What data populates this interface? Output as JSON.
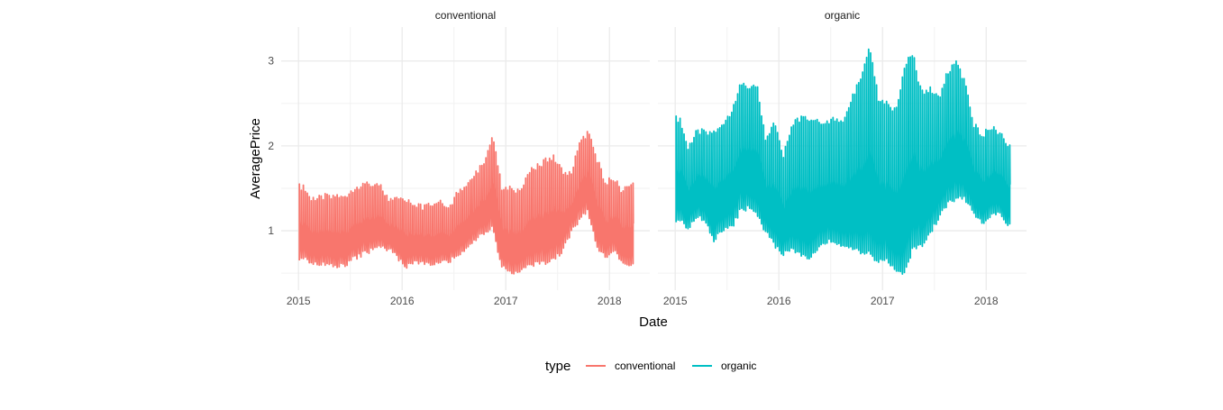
{
  "chart_data": {
    "type": "line",
    "facet_by": "type",
    "xlabel": "Date",
    "ylabel": "AveragePrice",
    "x_ticks": [
      "2015",
      "2016",
      "2017",
      "2018"
    ],
    "y_ticks": [
      1,
      2,
      3
    ],
    "xlim": [
      "2014-11-01",
      "2018-05-23"
    ],
    "ylim": [
      0.3,
      3.4
    ],
    "grid": true,
    "legend": {
      "title": "type",
      "placement": "bottom",
      "entries": [
        "conventional",
        "organic"
      ]
    },
    "date_range": [
      "2015-01-04",
      "2018-03-25"
    ],
    "note_series_format": "monthly envelope (min/max AveragePrice across regions), months 2015-01 to 2018-03",
    "panels": [
      {
        "name": "conventional",
        "color": "#F8766D",
        "monthly_high": [
          1.55,
          1.4,
          1.42,
          1.45,
          1.45,
          1.45,
          1.55,
          1.58,
          1.6,
          1.55,
          1.4,
          1.4,
          1.38,
          1.35,
          1.3,
          1.35,
          1.4,
          1.3,
          1.5,
          1.6,
          1.7,
          1.85,
          2.2,
          1.55,
          1.55,
          1.5,
          1.7,
          1.8,
          1.85,
          1.9,
          1.75,
          1.7,
          2.05,
          2.2,
          1.9,
          1.6,
          1.65,
          1.5,
          1.6
        ],
        "monthly_low": [
          0.65,
          0.6,
          0.58,
          0.6,
          0.55,
          0.58,
          0.65,
          0.7,
          0.75,
          0.78,
          0.75,
          0.65,
          0.55,
          0.6,
          0.6,
          0.58,
          0.6,
          0.62,
          0.7,
          0.78,
          0.85,
          0.95,
          1.0,
          0.55,
          0.5,
          0.48,
          0.55,
          0.58,
          0.6,
          0.65,
          0.7,
          0.95,
          1.1,
          1.2,
          0.8,
          0.65,
          0.75,
          0.6,
          0.58
        ]
      },
      {
        "name": "organic",
        "color": "#00BFC4",
        "monthly_high": [
          2.35,
          2.0,
          2.2,
          2.2,
          2.2,
          2.3,
          2.45,
          2.75,
          2.75,
          2.72,
          2.1,
          2.3,
          1.9,
          2.3,
          2.35,
          2.35,
          2.35,
          2.3,
          2.35,
          2.35,
          2.6,
          2.85,
          3.25,
          2.6,
          2.55,
          2.45,
          2.95,
          3.15,
          2.65,
          2.7,
          2.6,
          2.9,
          3.02,
          2.8,
          2.3,
          2.15,
          2.25,
          2.2,
          2.05
        ],
        "monthly_low": [
          1.1,
          1.0,
          1.15,
          1.1,
          0.85,
          1.0,
          1.0,
          1.2,
          1.25,
          1.15,
          0.95,
          0.8,
          0.7,
          0.75,
          0.7,
          0.65,
          0.75,
          0.85,
          0.85,
          0.8,
          0.75,
          0.72,
          0.7,
          0.6,
          0.65,
          0.5,
          0.45,
          0.75,
          0.8,
          0.95,
          1.1,
          1.3,
          1.35,
          1.35,
          1.2,
          1.05,
          1.15,
          1.2,
          1.05
        ]
      }
    ]
  }
}
